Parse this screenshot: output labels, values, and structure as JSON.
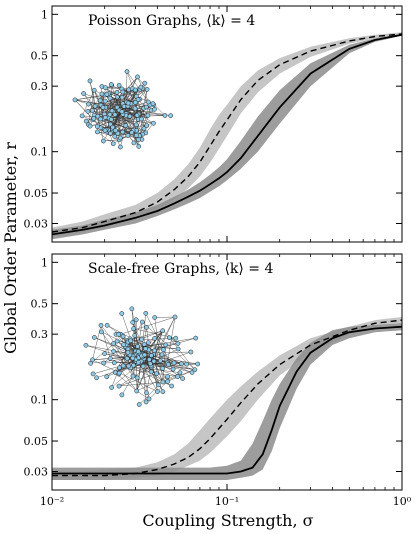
{
  "figure": {
    "ylabel": "Global Order Parameter, r",
    "xlabel": "Coupling Strength, σ"
  },
  "chart_data": [
    {
      "type": "line",
      "title": "Poisson Graphs, ⟨k⟩ = 4",
      "xscale": "log",
      "yscale": "log",
      "xlim": [
        0.01,
        1
      ],
      "ylim": [
        0.022,
        1.15
      ],
      "xticks": [
        "10⁻²",
        "10⁻¹",
        "10⁰"
      ],
      "yticks": [
        {
          "value": 1,
          "label": "1"
        },
        {
          "value": 0.5,
          "label": "0.5"
        },
        {
          "value": 0.3,
          "label": "0.3"
        },
        {
          "value": 0.1,
          "label": "0.1"
        },
        {
          "value": 0.05,
          "label": "0.05"
        },
        {
          "value": 0.03,
          "label": "0.03"
        }
      ],
      "inset": "network-graph",
      "series": [
        {
          "style": "dashed",
          "x": [
            0.01,
            0.015,
            0.02,
            0.03,
            0.04,
            0.05,
            0.06,
            0.07,
            0.08,
            0.09,
            0.1,
            0.12,
            0.15,
            0.2,
            0.3,
            0.5,
            0.7,
            1.0
          ],
          "y": [
            0.026,
            0.028,
            0.031,
            0.036,
            0.043,
            0.053,
            0.066,
            0.084,
            0.11,
            0.14,
            0.17,
            0.24,
            0.33,
            0.43,
            0.54,
            0.64,
            0.69,
            0.72
          ],
          "band_low": [
            0.024,
            0.026,
            0.028,
            0.032,
            0.038,
            0.045,
            0.054,
            0.066,
            0.083,
            0.105,
            0.13,
            0.19,
            0.27,
            0.37,
            0.49,
            0.61,
            0.67,
            0.71
          ],
          "band_high": [
            0.028,
            0.031,
            0.035,
            0.041,
            0.05,
            0.063,
            0.081,
            0.107,
            0.145,
            0.185,
            0.22,
            0.3,
            0.39,
            0.48,
            0.58,
            0.67,
            0.71,
            0.74
          ]
        },
        {
          "style": "solid",
          "x": [
            0.01,
            0.015,
            0.02,
            0.03,
            0.04,
            0.05,
            0.06,
            0.07,
            0.08,
            0.09,
            0.1,
            0.12,
            0.15,
            0.2,
            0.3,
            0.5,
            0.7,
            1.0
          ],
          "y": [
            0.025,
            0.027,
            0.029,
            0.033,
            0.037,
            0.042,
            0.047,
            0.052,
            0.058,
            0.064,
            0.071,
            0.09,
            0.13,
            0.21,
            0.37,
            0.56,
            0.65,
            0.71
          ],
          "band_low": [
            0.023,
            0.025,
            0.027,
            0.03,
            0.034,
            0.038,
            0.042,
            0.046,
            0.051,
            0.056,
            0.062,
            0.075,
            0.1,
            0.16,
            0.3,
            0.52,
            0.63,
            0.7
          ],
          "band_high": [
            0.027,
            0.029,
            0.032,
            0.036,
            0.041,
            0.047,
            0.053,
            0.06,
            0.068,
            0.077,
            0.088,
            0.12,
            0.18,
            0.28,
            0.44,
            0.6,
            0.67,
            0.72
          ]
        }
      ]
    },
    {
      "type": "line",
      "title": "Scale-free Graphs, ⟨k⟩ = 4",
      "xscale": "log",
      "yscale": "log",
      "xlim": [
        0.01,
        1
      ],
      "ylim": [
        0.022,
        1.15
      ],
      "xticks": [
        "10⁻²",
        "10⁻¹",
        "10⁰"
      ],
      "yticks": [
        {
          "value": 1,
          "label": "1"
        },
        {
          "value": 0.5,
          "label": "0.5"
        },
        {
          "value": 0.3,
          "label": "0.3"
        },
        {
          "value": 0.1,
          "label": "0.1"
        },
        {
          "value": 0.05,
          "label": "0.05"
        },
        {
          "value": 0.03,
          "label": "0.03"
        }
      ],
      "inset": "network-graph",
      "series": [
        {
          "style": "dashed",
          "x": [
            0.01,
            0.015,
            0.02,
            0.03,
            0.04,
            0.05,
            0.06,
            0.07,
            0.08,
            0.1,
            0.12,
            0.15,
            0.2,
            0.3,
            0.5,
            0.7,
            1.0
          ],
          "y": [
            0.028,
            0.028,
            0.028,
            0.029,
            0.031,
            0.034,
            0.038,
            0.044,
            0.052,
            0.072,
            0.095,
            0.13,
            0.18,
            0.25,
            0.32,
            0.36,
            0.38
          ],
          "band_low": [
            0.026,
            0.026,
            0.026,
            0.027,
            0.028,
            0.03,
            0.033,
            0.036,
            0.041,
            0.054,
            0.07,
            0.1,
            0.15,
            0.22,
            0.3,
            0.34,
            0.36
          ],
          "band_high": [
            0.03,
            0.03,
            0.031,
            0.032,
            0.035,
            0.04,
            0.048,
            0.06,
            0.073,
            0.1,
            0.125,
            0.16,
            0.21,
            0.28,
            0.34,
            0.38,
            0.4
          ]
        },
        {
          "style": "solid",
          "x": [
            0.01,
            0.015,
            0.02,
            0.03,
            0.04,
            0.05,
            0.06,
            0.07,
            0.08,
            0.1,
            0.12,
            0.14,
            0.16,
            0.18,
            0.2,
            0.25,
            0.3,
            0.4,
            0.5,
            0.7,
            1.0
          ],
          "y": [
            0.029,
            0.029,
            0.029,
            0.029,
            0.029,
            0.029,
            0.029,
            0.029,
            0.029,
            0.029,
            0.03,
            0.032,
            0.04,
            0.06,
            0.09,
            0.16,
            0.22,
            0.28,
            0.31,
            0.33,
            0.34
          ],
          "band_low": [
            0.026,
            0.026,
            0.026,
            0.026,
            0.026,
            0.026,
            0.026,
            0.026,
            0.026,
            0.026,
            0.027,
            0.028,
            0.031,
            0.042,
            0.062,
            0.12,
            0.18,
            0.25,
            0.28,
            0.31,
            0.32
          ],
          "band_high": [
            0.032,
            0.032,
            0.032,
            0.032,
            0.032,
            0.032,
            0.032,
            0.032,
            0.032,
            0.033,
            0.036,
            0.048,
            0.07,
            0.1,
            0.13,
            0.2,
            0.26,
            0.32,
            0.34,
            0.35,
            0.36
          ]
        }
      ]
    }
  ],
  "colors": {
    "dashed_band": "#b3b3b3",
    "solid_band": "#8c8c8c",
    "line": "#000000",
    "node": "#8ecae6",
    "edge": "#333333"
  }
}
